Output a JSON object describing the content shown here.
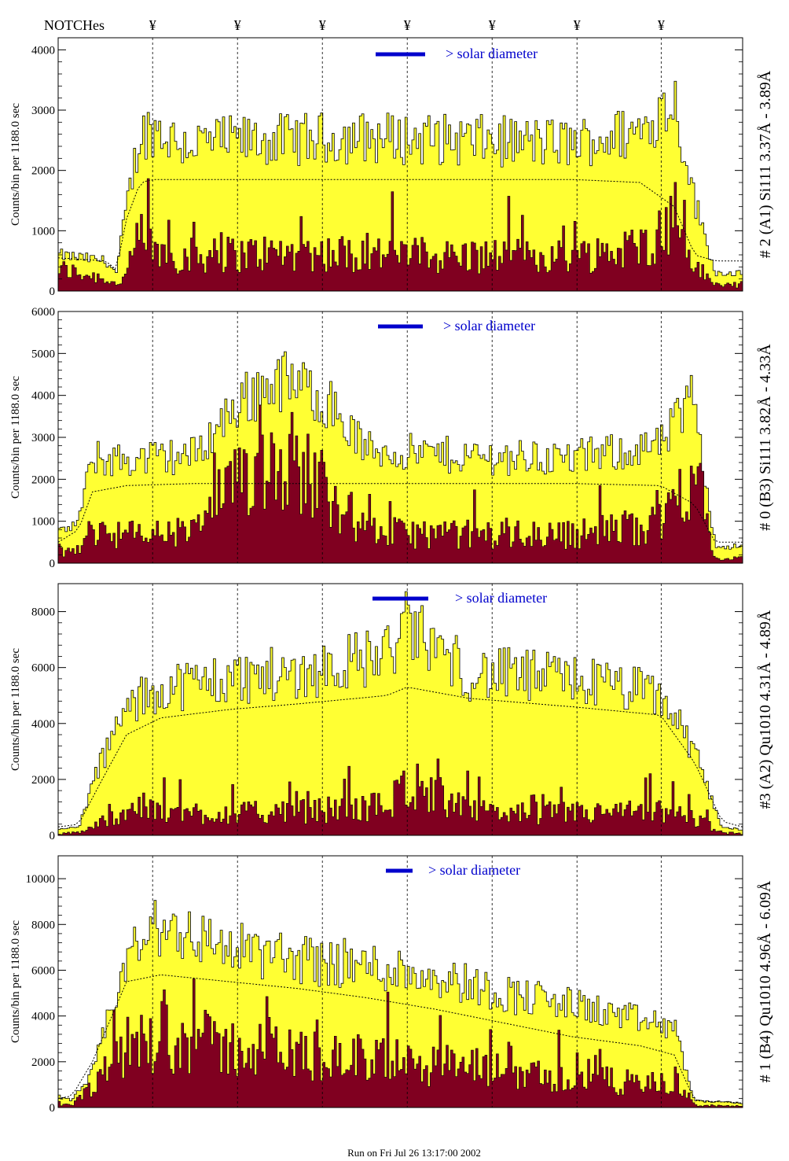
{
  "header": {
    "notches_label": "NOTCHes",
    "notch_symbol": "¥"
  },
  "footer": {
    "run_text": "Run on Fri Jul 26 13:17:00 2002"
  },
  "colors": {
    "yellow": "#ffff33",
    "maroon": "#800020",
    "legend_blue": "#0000cc"
  },
  "chart_data": [
    {
      "type": "area",
      "title": "# 2 (A1) Si111  3.37Å - 3.89Å",
      "ylabel": "Counts/bin per   1188.0 sec",
      "legend": "> solar diameter",
      "ylim": [
        0,
        4200
      ],
      "yticks": [
        0,
        1000,
        2000,
        3000,
        4000
      ],
      "notches_x": [
        0.138,
        0.262,
        0.386,
        0.51,
        0.634,
        0.758,
        0.881
      ],
      "x": [
        0.0,
        0.07,
        0.085,
        0.1,
        0.12,
        0.14,
        0.18,
        0.3,
        0.45,
        0.6,
        0.75,
        0.85,
        0.9,
        0.93,
        0.96,
        1.0
      ],
      "total_counts": [
        600,
        500,
        300,
        1400,
        2600,
        2700,
        2450,
        2500,
        2550,
        2500,
        2450,
        2650,
        3200,
        1500,
        300,
        300
      ],
      "high_energy_counts": [
        350,
        200,
        100,
        250,
        900,
        650,
        550,
        600,
        600,
        550,
        550,
        700,
        1100,
        400,
        100,
        100
      ],
      "smooth_model": [
        550,
        500,
        350,
        1200,
        1800,
        1850,
        1850,
        1850,
        1850,
        1850,
        1850,
        1800,
        1400,
        600,
        500,
        500
      ]
    },
    {
      "type": "area",
      "title": "# 0 (B3) Si111  3.82Å - 4.33Å",
      "ylabel": "Counts/bin per   1188.0 sec",
      "legend": "> solar diameter",
      "ylim": [
        0,
        6000
      ],
      "yticks": [
        0,
        1000,
        2000,
        3000,
        4000,
        5000,
        6000
      ],
      "notches_x": [
        0.138,
        0.262,
        0.386,
        0.51,
        0.634,
        0.758,
        0.881
      ],
      "x": [
        0.0,
        0.03,
        0.05,
        0.1,
        0.2,
        0.262,
        0.32,
        0.386,
        0.45,
        0.6,
        0.75,
        0.88,
        0.93,
        0.96,
        1.0
      ],
      "total_counts": [
        700,
        1000,
        2500,
        2450,
        2600,
        3800,
        4400,
        4000,
        2700,
        2550,
        2500,
        2800,
        4000,
        400,
        400
      ],
      "high_energy_counts": [
        300,
        200,
        800,
        650,
        700,
        1800,
        2600,
        1800,
        700,
        650,
        650,
        900,
        2200,
        100,
        100
      ],
      "smooth_model": [
        500,
        800,
        1700,
        1850,
        1900,
        1900,
        1900,
        1900,
        1900,
        1900,
        1900,
        1850,
        1400,
        500,
        500
      ]
    },
    {
      "type": "area",
      "title": "#3 (A2) Qu1010  4.31Å - 4.89Å",
      "ylabel": "Counts/bin per   1188.0 sec",
      "legend": "> solar diameter",
      "ylim": [
        0,
        9000
      ],
      "yticks": [
        0,
        2000,
        4000,
        6000,
        8000
      ],
      "notches_x": [
        0.138,
        0.262,
        0.386,
        0.51,
        0.634,
        0.758,
        0.881
      ],
      "x": [
        0.0,
        0.03,
        0.06,
        0.1,
        0.15,
        0.25,
        0.35,
        0.48,
        0.51,
        0.6,
        0.75,
        0.88,
        0.93,
        0.97,
        1.0
      ],
      "total_counts": [
        200,
        300,
        2500,
        4500,
        5300,
        5600,
        5800,
        6500,
        7500,
        5800,
        5600,
        5000,
        3000,
        300,
        200
      ],
      "high_energy_counts": [
        50,
        100,
        400,
        900,
        800,
        750,
        800,
        1000,
        1800,
        800,
        750,
        800,
        600,
        100,
        50
      ],
      "smooth_model": [
        300,
        400,
        1800,
        3600,
        4200,
        4500,
        4700,
        5000,
        5300,
        4900,
        4600,
        4300,
        2600,
        500,
        300
      ]
    },
    {
      "type": "area",
      "title": "# 1 (B4) Qu1010 4.96Å - 6.09Å",
      "ylabel": "Counts/bin per   1188.0 sec",
      "legend": "> solar diameter",
      "ylim": [
        0,
        11000
      ],
      "yticks": [
        0,
        2000,
        4000,
        6000,
        8000,
        10000
      ],
      "notches_x": [
        0.138,
        0.262,
        0.386,
        0.51,
        0.634,
        0.758,
        0.881
      ],
      "x": [
        0.0,
        0.02,
        0.05,
        0.1,
        0.15,
        0.25,
        0.35,
        0.45,
        0.55,
        0.65,
        0.75,
        0.85,
        0.9,
        0.93,
        1.0
      ],
      "total_counts": [
        500,
        300,
        1500,
        6500,
        8000,
        7000,
        6500,
        6200,
        5800,
        5000,
        4500,
        3800,
        3500,
        300,
        200
      ],
      "high_energy_counts": [
        100,
        100,
        800,
        2500,
        3000,
        2500,
        2200,
        2000,
        1800,
        1500,
        1200,
        1000,
        900,
        100,
        50
      ],
      "smooth_model": [
        400,
        500,
        2000,
        5500,
        5800,
        5500,
        5200,
        4800,
        4300,
        3700,
        3100,
        2700,
        2300,
        300,
        200
      ]
    }
  ]
}
